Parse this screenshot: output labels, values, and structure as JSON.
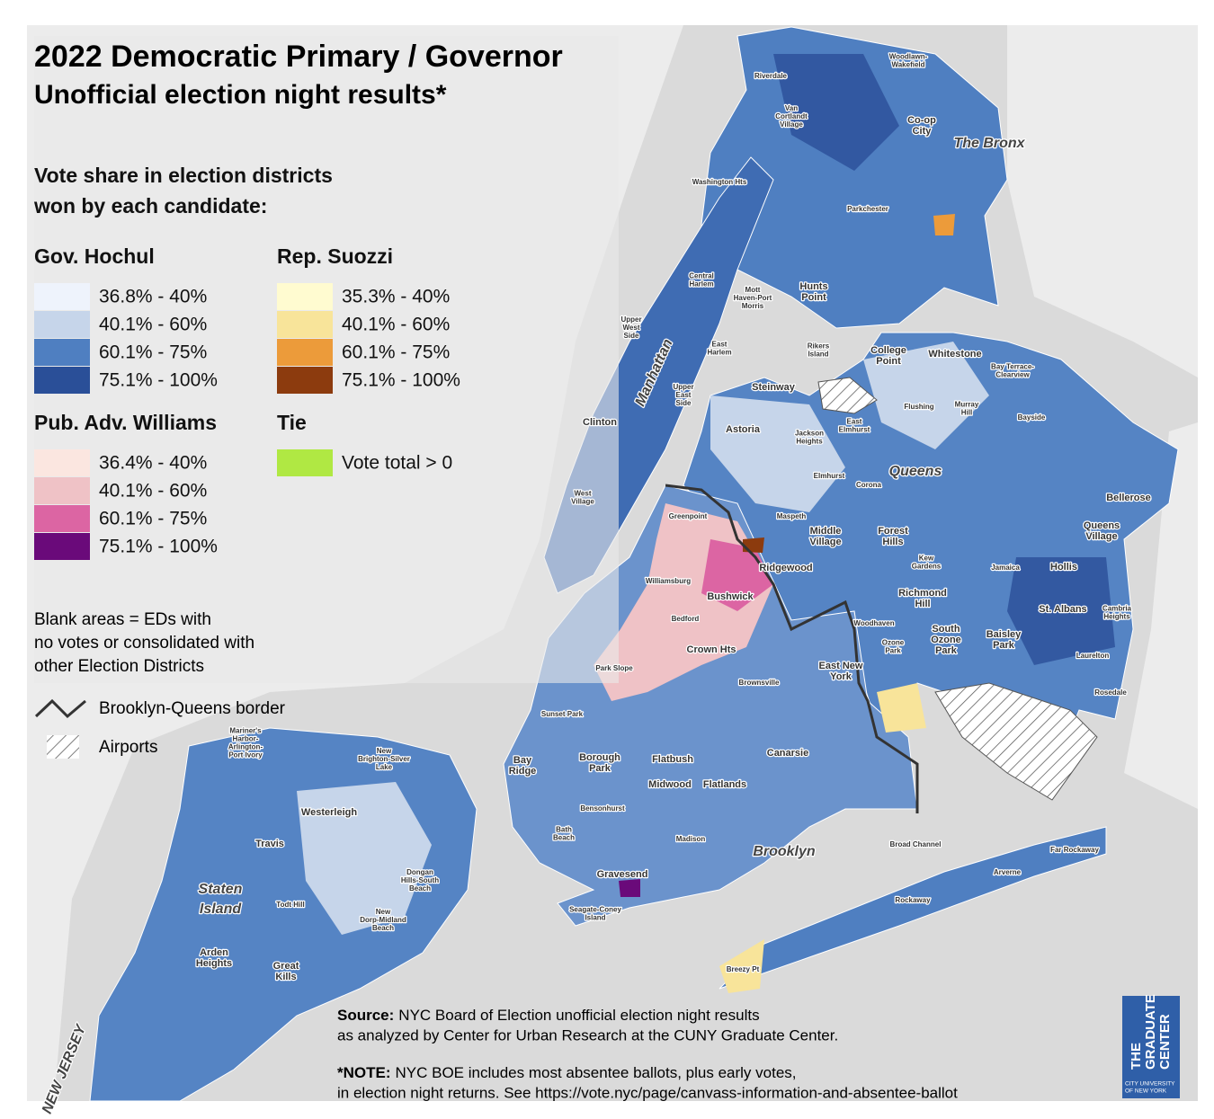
{
  "title": [
    "2022 Democratic Primary / Governor",
    "Unofficial election night results*"
  ],
  "legend": {
    "heading": [
      "Vote share in election districts",
      "won by each candidate:"
    ],
    "groups": [
      {
        "title": "Gov. Hochul",
        "items": [
          {
            "label": "36.8% - 40%",
            "color": "#eef3fc"
          },
          {
            "label": "40.1% - 60%",
            "color": "#c6d5ea"
          },
          {
            "label": "60.1% - 75%",
            "color": "#4f7fc1"
          },
          {
            "label": "75.1% - 100%",
            "color": "#2a4f98"
          }
        ]
      },
      {
        "title": "Rep. Suozzi",
        "items": [
          {
            "label": "35.3% - 40%",
            "color": "#fffbd0"
          },
          {
            "label": "40.1% - 60%",
            "color": "#f8e49a"
          },
          {
            "label": "60.1% - 75%",
            "color": "#ec9b3a"
          },
          {
            "label": "75.1% - 100%",
            "color": "#8c3b0e"
          }
        ]
      },
      {
        "title": "Pub. Adv. Williams",
        "items": [
          {
            "label": "36.4% - 40%",
            "color": "#fbe6e0"
          },
          {
            "label": "40.1% - 60%",
            "color": "#efc2c6"
          },
          {
            "label": "60.1% - 75%",
            "color": "#dc65a3"
          },
          {
            "label": "75.1% - 100%",
            "color": "#6a0a7a"
          }
        ]
      },
      {
        "title": "Tie",
        "items": [
          {
            "label": "Vote total > 0",
            "color": "#b0e843"
          }
        ]
      }
    ],
    "blank_note": [
      "Blank areas = EDs with",
      "no votes or consolidated with",
      "other Election Districts"
    ],
    "border": "Brooklyn-Queens border",
    "airports": "Airports"
  },
  "labels": [
    [
      "Woodlawn-",
      "Wakefield"
    ],
    [
      "Riverdale"
    ],
    [
      "Van",
      "Cortlandt",
      "Village"
    ],
    [
      "Co-op",
      "City"
    ],
    [
      "The Bronx"
    ],
    [
      "Washington Hts"
    ],
    [
      "Parkchester"
    ],
    [
      "Central",
      "Harlem"
    ],
    [
      "Mott",
      "Haven-Port",
      "Morris"
    ],
    [
      "Hunts",
      "Point"
    ],
    [
      "Upper",
      "West",
      "Side"
    ],
    [
      "Manhattan"
    ],
    [
      "East",
      "Harlem"
    ],
    [
      "Rikers",
      "Island"
    ],
    [
      "College",
      "Point"
    ],
    [
      "Whitestone"
    ],
    [
      "Bay Terrace-",
      "Clearview"
    ],
    [
      "Steinway"
    ],
    [
      "Upper",
      "East",
      "Side"
    ],
    [
      "Flushing"
    ],
    [
      "Murray",
      "Hill"
    ],
    [
      "Bayside"
    ],
    [
      "Clinton"
    ],
    [
      "Astoria"
    ],
    [
      "East",
      "Elmhurst"
    ],
    [
      "Jackson",
      "Heights"
    ],
    [
      "Elmhurst"
    ],
    [
      "Corona"
    ],
    [
      "Queens"
    ],
    [
      "Bellerose"
    ],
    [
      "West",
      "Village"
    ],
    [
      "Greenpoint"
    ],
    [
      "Maspeth"
    ],
    [
      "Middle",
      "Village"
    ],
    [
      "Forest",
      "Hills"
    ],
    [
      "Queens",
      "Village"
    ],
    [
      "Kew",
      "Gardens"
    ],
    [
      "Ridgewood"
    ],
    [
      "Jamaica"
    ],
    [
      "Hollis"
    ],
    [
      "Williamsburg"
    ],
    [
      "Bushwick"
    ],
    [
      "Richmond",
      "Hill"
    ],
    [
      "St. Albans"
    ],
    [
      "Cambria",
      "Heights"
    ],
    [
      "Bedford"
    ],
    [
      "Woodhaven"
    ],
    [
      "Ozone",
      "Park"
    ],
    [
      "South",
      "Ozone",
      "Park"
    ],
    [
      "Baisley",
      "Park"
    ],
    [
      "Crown Hts"
    ],
    [
      "Laurelton"
    ],
    [
      "Park Slope"
    ],
    [
      "East New",
      "York"
    ],
    [
      "Brownsville"
    ],
    [
      "Rosedale"
    ],
    [
      "Sunset Park"
    ],
    [
      "Canarsie"
    ],
    [
      "Bay",
      "Ridge"
    ],
    [
      "Borough",
      "Park"
    ],
    [
      "Flatbush"
    ],
    [
      "Midwood"
    ],
    [
      "Flatlands"
    ],
    [
      "Bensonhurst"
    ],
    [
      "Bath",
      "Beach"
    ],
    [
      "Madison"
    ],
    [
      "Brooklyn"
    ],
    [
      "Broad Channel"
    ],
    [
      "Far Rockaway"
    ],
    [
      "Gravesend"
    ],
    [
      "Arverne"
    ],
    [
      "Rockaway"
    ],
    [
      "Seagate-Coney",
      "Island"
    ],
    [
      "Breezy Pt"
    ],
    [
      "Mariner's",
      "Harbor-",
      "Arlington-",
      "Port Ivory"
    ],
    [
      "New",
      "Brighton-Silver",
      "Lake"
    ],
    [
      "Westerleigh"
    ],
    [
      "Travis"
    ],
    [
      "Staten",
      "Island"
    ],
    [
      "Dongan",
      "Hills-South",
      "Beach"
    ],
    [
      "Todt Hill"
    ],
    [
      "New",
      "Dorp-Midland",
      "Beach"
    ],
    [
      "Arden",
      "Heights"
    ],
    [
      "Great",
      "Kills"
    ],
    [
      "NEW JERSEY"
    ]
  ],
  "source": {
    "label": "Source:",
    "lines": [
      "NYC Board of Election unofficial election night results",
      "as analyzed by Center for Urban Research at the CUNY Graduate Center."
    ]
  },
  "note": {
    "label": "*NOTE:",
    "lines": [
      "NYC BOE includes most absentee ballots, plus early votes,",
      "in election night returns. See https://vote.nyc/page/canvass-information-and-absentee-ballot"
    ]
  },
  "logo": {
    "name": [
      "THE",
      "GRADUATE",
      "CENTER"
    ],
    "sub": [
      "CITY UNIVERSITY",
      "OF NEW YORK"
    ]
  }
}
